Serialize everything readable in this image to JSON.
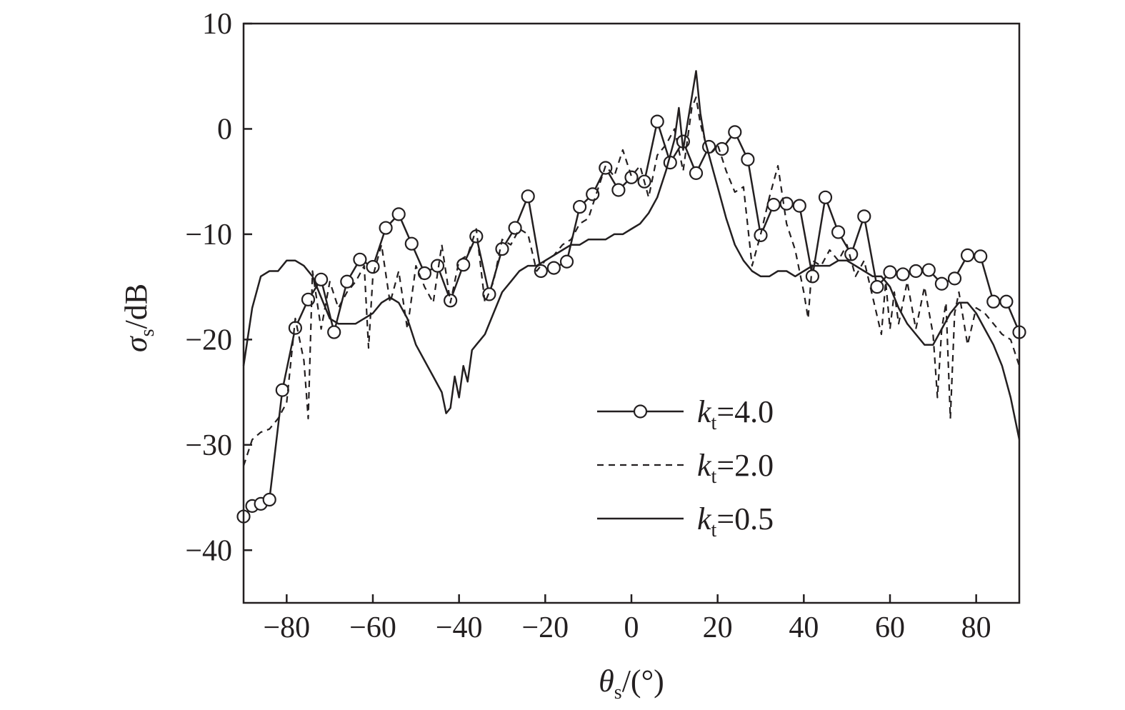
{
  "chart_data": {
    "type": "line",
    "title": "",
    "xlabel": {
      "symbol": "θ",
      "subscript": "s",
      "unit": "/(°)"
    },
    "ylabel": {
      "symbol": "σ",
      "subscript": "s",
      "unit": "/dB"
    },
    "xlim": [
      -90,
      90
    ],
    "ylim": [
      -45,
      10
    ],
    "xticks": [
      -80,
      -60,
      -40,
      -20,
      0,
      20,
      40,
      60,
      80
    ],
    "xtick_labels": [
      "−80",
      "−60",
      "−40",
      "−20",
      "0",
      "20",
      "40",
      "60",
      "80"
    ],
    "yticks": [
      10,
      0,
      -10,
      -20,
      -30,
      -40
    ],
    "ytick_labels": [
      "10",
      "0",
      "−10",
      "−20",
      "−30",
      "−40"
    ],
    "grid": false,
    "legend_position": "lower-center",
    "colors": {
      "line": "#231f20",
      "frame": "#231f20",
      "marker_fill": "#ffffff"
    },
    "series": [
      {
        "name": "4.0",
        "legend_prefix": "k",
        "legend_subscript": "t",
        "legend_eq": "=",
        "style": "solid-circle",
        "x": [
          -90,
          -88,
          -86,
          -84,
          -81,
          -78,
          -75,
          -72,
          -69,
          -66,
          -63,
          -60,
          -57,
          -54,
          -51,
          -48,
          -45,
          -42,
          -39,
          -36,
          -33,
          -30,
          -27,
          -24,
          -21,
          -18,
          -15,
          -12,
          -9,
          -6,
          -3,
          0,
          3,
          6,
          9,
          12,
          15,
          18,
          21,
          24,
          27,
          30,
          33,
          36,
          39,
          42,
          45,
          48,
          51,
          54,
          57,
          60,
          63,
          66,
          69,
          72,
          75,
          78,
          81,
          84,
          87,
          90
        ],
        "y": [
          -36.8,
          -35.8,
          -35.6,
          -35.2,
          -24.8,
          -18.9,
          -16.2,
          -14.3,
          -19.3,
          -14.5,
          -12.4,
          -13.1,
          -9.4,
          -8.1,
          -10.9,
          -13.7,
          -13.0,
          -16.3,
          -12.9,
          -10.2,
          -15.7,
          -11.4,
          -9.4,
          -6.4,
          -13.5,
          -13.2,
          -12.6,
          -7.4,
          -6.2,
          -3.7,
          -5.8,
          -4.6,
          -5.0,
          0.7,
          -3.2,
          -1.2,
          -4.2,
          -1.7,
          -1.9,
          -0.3,
          -2.9,
          -10.1,
          -7.2,
          -7.1,
          -7.3,
          -14.0,
          -6.5,
          -9.8,
          -11.9,
          -8.3,
          -15.0,
          -13.6,
          -13.8,
          -13.5,
          -13.4,
          -14.7,
          -14.2,
          -12.0,
          -12.1,
          -16.4,
          -16.4,
          -19.3
        ]
      },
      {
        "name": "2.0",
        "legend_prefix": "k",
        "legend_subscript": "t",
        "legend_eq": "=",
        "style": "dashed",
        "x": [
          -90,
          -88,
          -86,
          -84,
          -82,
          -80,
          -78,
          -76,
          -75,
          -74,
          -72,
          -70,
          -68,
          -66,
          -64,
          -62,
          -61,
          -60,
          -58,
          -56,
          -54,
          -52,
          -50,
          -48,
          -46,
          -44,
          -42,
          -40,
          -38,
          -36,
          -34,
          -32,
          -30,
          -28,
          -26,
          -24,
          -22,
          -20,
          -18,
          -16,
          -14,
          -12,
          -10,
          -8,
          -6,
          -4,
          -2,
          0,
          2,
          4,
          6,
          8,
          10,
          12,
          14,
          15,
          16,
          18,
          20,
          22,
          24,
          26,
          28,
          30,
          32,
          34,
          36,
          38,
          40,
          41,
          42,
          44,
          46,
          48,
          50,
          52,
          54,
          56,
          58,
          59,
          60,
          61,
          62,
          64,
          66,
          68,
          70,
          71,
          72,
          73,
          74,
          75,
          76,
          78,
          80,
          82,
          84,
          86,
          88,
          90
        ],
        "y": [
          -32.0,
          -29.5,
          -28.8,
          -28.5,
          -27.5,
          -26.0,
          -18.0,
          -22.0,
          -27.5,
          -13.5,
          -19.0,
          -14.5,
          -17.0,
          -15.5,
          -14.5,
          -13.0,
          -20.8,
          -14.0,
          -11.0,
          -16.5,
          -13.5,
          -19.0,
          -13.0,
          -15.0,
          -16.5,
          -11.0,
          -16.5,
          -12.5,
          -12.0,
          -9.5,
          -16.5,
          -14.5,
          -10.5,
          -11.0,
          -9.5,
          -10.0,
          -13.5,
          -12.5,
          -12.0,
          -11.0,
          -10.5,
          -9.0,
          -8.5,
          -6.0,
          -3.5,
          -4.5,
          -2.0,
          -4.5,
          -3.5,
          -6.5,
          -2.5,
          -1.5,
          0.0,
          -4.0,
          2.0,
          3.0,
          0.5,
          -2.5,
          -1.5,
          -4.0,
          -6.0,
          -5.5,
          -13.0,
          -10.0,
          -6.5,
          -3.5,
          -9.0,
          -11.5,
          -15.5,
          -18.0,
          -12.5,
          -13.0,
          -11.5,
          -12.5,
          -11.0,
          -14.0,
          -12.5,
          -16.0,
          -19.5,
          -14.5,
          -19.0,
          -15.5,
          -18.5,
          -14.5,
          -19.0,
          -15.0,
          -19.5,
          -25.5,
          -19.0,
          -16.5,
          -27.5,
          -17.5,
          -15.5,
          -20.5,
          -17.0,
          -17.5,
          -18.5,
          -19.5,
          -20.0,
          -22.5
        ]
      },
      {
        "name": "0.5",
        "legend_prefix": "k",
        "legend_subscript": "t",
        "legend_eq": "=",
        "style": "solid",
        "x": [
          -90,
          -88,
          -86,
          -84,
          -82,
          -80,
          -78,
          -76,
          -74,
          -72,
          -70,
          -68,
          -66,
          -64,
          -62,
          -60,
          -58,
          -56,
          -54,
          -52,
          -50,
          -48,
          -46,
          -44,
          -43,
          -42,
          -41,
          -40,
          -39,
          -38,
          -37,
          -36,
          -35,
          -34,
          -32,
          -30,
          -28,
          -26,
          -24,
          -22,
          -20,
          -18,
          -16,
          -14,
          -12,
          -10,
          -8,
          -6,
          -4,
          -2,
          0,
          2,
          4,
          6,
          8,
          10,
          11,
          12,
          13,
          14,
          15,
          16,
          17,
          18,
          19,
          20,
          22,
          24,
          26,
          28,
          30,
          32,
          34,
          36,
          38,
          40,
          42,
          44,
          46,
          48,
          50,
          52,
          54,
          56,
          58,
          60,
          62,
          64,
          66,
          68,
          70,
          72,
          74,
          76,
          78,
          80,
          82,
          84,
          86,
          88,
          90
        ],
        "y": [
          -22.5,
          -17.0,
          -14.0,
          -13.5,
          -13.5,
          -12.5,
          -12.5,
          -13.0,
          -14.0,
          -16.0,
          -18.0,
          -18.5,
          -18.5,
          -18.5,
          -18.0,
          -17.5,
          -16.5,
          -16.0,
          -16.5,
          -18.0,
          -20.5,
          -22.0,
          -23.5,
          -25.0,
          -27.0,
          -26.5,
          -23.5,
          -25.5,
          -22.5,
          -24.0,
          -21.0,
          -20.5,
          -20.0,
          -19.5,
          -17.5,
          -15.5,
          -14.5,
          -13.5,
          -13.0,
          -13.0,
          -12.5,
          -12.0,
          -11.5,
          -11.0,
          -11.0,
          -10.5,
          -10.5,
          -10.5,
          -10.0,
          -10.0,
          -9.5,
          -9.0,
          -8.0,
          -6.5,
          -4.0,
          -1.0,
          2.0,
          -2.0,
          0.5,
          3.0,
          5.5,
          1.5,
          -1.0,
          -2.5,
          -4.0,
          -5.5,
          -8.5,
          -11.0,
          -12.5,
          -13.5,
          -14.0,
          -14.0,
          -13.5,
          -13.5,
          -14.0,
          -13.5,
          -13.0,
          -13.0,
          -13.0,
          -12.5,
          -12.5,
          -13.0,
          -13.5,
          -14.0,
          -14.0,
          -15.0,
          -17.0,
          -18.5,
          -19.5,
          -20.5,
          -20.5,
          -19.0,
          -17.5,
          -16.5,
          -16.5,
          -17.5,
          -19.0,
          -20.5,
          -22.5,
          -25.5,
          -29.5
        ]
      }
    ]
  }
}
